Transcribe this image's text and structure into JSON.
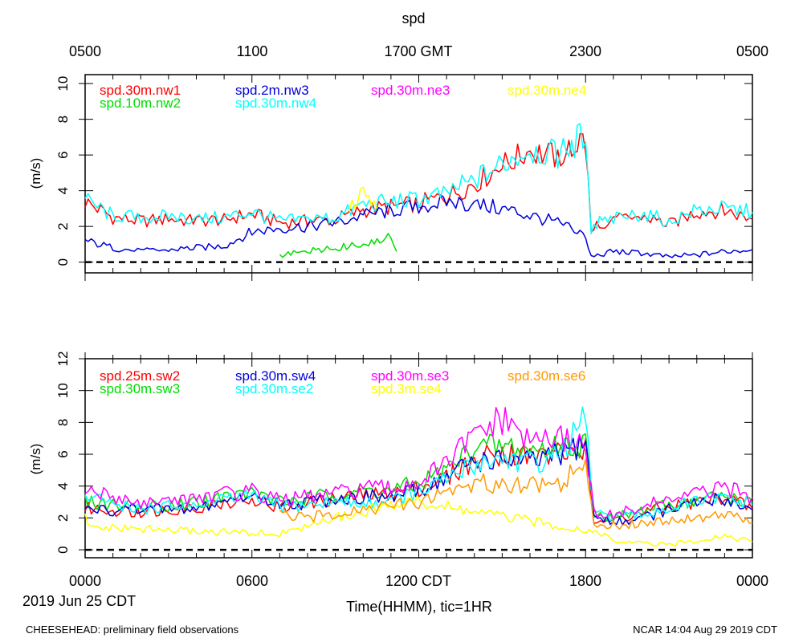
{
  "header": {
    "title": "spd",
    "top_ticks": [
      "0500",
      "1100",
      "1700 GMT",
      "2300",
      "0500"
    ]
  },
  "footer": {
    "date": "2019 Jun 25 CDT",
    "xlabel": "Time(HHMM), tic=1HR",
    "left_note": "CHEESEHEAD: preliminary field observations",
    "right_note": "NCAR 14:04 Aug 29 2019 CDT",
    "bottom_ticks": [
      "0000",
      "0600",
      "1200 CDT",
      "1800",
      "0000"
    ]
  },
  "chart_data": [
    {
      "type": "line",
      "title": "spd",
      "ylabel": "(m/s)",
      "xlabel": "Time(HHMM), tic=1HR",
      "x_unit": "hours CDT since 0000 Jun 25",
      "xlim": [
        0,
        24
      ],
      "ylim": [
        -0.6,
        10.5
      ],
      "yticks": [
        0,
        2,
        4,
        6,
        8,
        10
      ],
      "zero_line": true,
      "series": [
        {
          "name": "spd.30m.nw1",
          "color": "#ff0000",
          "x": [
            0,
            1,
            2,
            3,
            4,
            5,
            6,
            7,
            8,
            9,
            10,
            11,
            12,
            13,
            14,
            15,
            16,
            17,
            17.5,
            18,
            18.2,
            18.5,
            19,
            20,
            21,
            22,
            23,
            24
          ],
          "values": [
            3.4,
            2.5,
            2.3,
            2.4,
            2.3,
            2.4,
            2.7,
            2.2,
            2.3,
            2.4,
            2.9,
            3.1,
            3.3,
            3.7,
            4.4,
            5.4,
            6.2,
            5.9,
            6.4,
            7.0,
            1.6,
            2.2,
            2.3,
            2.6,
            2.1,
            2.8,
            2.9,
            2.4
          ]
        },
        {
          "name": "spd.10m.nw2",
          "color": "#00dd00",
          "x": [
            7,
            7.5,
            8,
            8.5,
            9,
            9.5,
            10,
            10.5,
            11,
            11.2
          ],
          "values": [
            0.4,
            0.5,
            0.6,
            0.7,
            0.8,
            0.9,
            1.0,
            1.2,
            1.5,
            0.6
          ]
        },
        {
          "name": "spd.2m.nw3",
          "color": "#0000dd",
          "x": [
            0,
            1,
            2,
            3,
            4,
            5,
            6,
            7,
            8,
            9,
            10,
            11,
            12,
            13,
            14,
            15,
            16,
            17,
            17.5,
            18,
            18.2,
            19,
            20,
            21,
            22,
            23,
            24
          ],
          "values": [
            1.2,
            0.8,
            0.6,
            0.7,
            0.8,
            0.9,
            1.7,
            1.9,
            2.0,
            2.2,
            2.6,
            2.9,
            3.1,
            3.4,
            3.2,
            3.0,
            2.6,
            2.2,
            1.8,
            1.5,
            0.3,
            0.6,
            0.5,
            0.3,
            0.4,
            0.6,
            0.7
          ]
        },
        {
          "name": "spd.30m.nw4",
          "color": "#00ffff",
          "x": [
            0,
            1,
            2,
            3,
            4,
            5,
            6,
            7,
            8,
            9,
            10,
            11,
            12,
            13,
            14,
            15,
            16,
            17,
            17.5,
            18,
            18.2,
            18.5,
            19,
            20,
            21,
            22,
            23,
            24
          ],
          "values": [
            3.5,
            2.6,
            2.5,
            2.6,
            2.4,
            2.5,
            2.8,
            2.3,
            2.4,
            2.5,
            3.2,
            3.4,
            3.5,
            3.9,
            4.6,
            5.5,
            6.3,
            6.0,
            6.6,
            7.2,
            1.7,
            2.3,
            2.4,
            2.7,
            2.3,
            2.9,
            3.0,
            2.8
          ]
        },
        {
          "name": "spd.30m.ne3",
          "color": "#ff00ff",
          "x": [],
          "values": []
        },
        {
          "name": "spd.30m.ne4",
          "color": "#ffff00",
          "x": [
            9.5,
            10,
            10.5
          ],
          "values": [
            3.0,
            3.8,
            3.0
          ]
        }
      ]
    },
    {
      "type": "line",
      "ylabel": "(m/s)",
      "xlabel": "Time(HHMM), tic=1HR",
      "x_unit": "hours CDT since 0000 Jun 25",
      "xlim": [
        0,
        24
      ],
      "ylim": [
        -0.5,
        12
      ],
      "yticks": [
        0,
        2,
        4,
        6,
        8,
        10,
        12
      ],
      "xtick_labels": [
        "0000",
        "0600",
        "1200 CDT",
        "1800",
        "0000"
      ],
      "zero_line": true,
      "series": [
        {
          "name": "spd.25m.sw2",
          "color": "#ff0000",
          "x": [
            0,
            2,
            4,
            6,
            7,
            8,
            9,
            10,
            11,
            12,
            13,
            14,
            15,
            16,
            17,
            18,
            18.3,
            19,
            20,
            21,
            22,
            23,
            24
          ],
          "values": [
            2.6,
            2.4,
            2.7,
            3.3,
            2.6,
            2.9,
            3.2,
            3.4,
            3.5,
            3.9,
            4.5,
            5.7,
            6.1,
            5.9,
            6.0,
            6.3,
            2.0,
            1.9,
            2.3,
            2.7,
            3.0,
            3.3,
            2.6
          ]
        },
        {
          "name": "spd.30m.sw3",
          "color": "#00dd00",
          "x": [
            0,
            2,
            4,
            6,
            7,
            8,
            9,
            10,
            11,
            12,
            13,
            14,
            15,
            16,
            17,
            18,
            18.3,
            19,
            20,
            21,
            22,
            23,
            24
          ],
          "values": [
            3.0,
            2.7,
            3.0,
            3.6,
            3.0,
            3.2,
            3.5,
            3.7,
            3.7,
            4.2,
            5.0,
            6.4,
            6.5,
            6.3,
            6.4,
            6.7,
            2.3,
            2.0,
            2.4,
            2.8,
            3.1,
            3.4,
            2.9
          ]
        },
        {
          "name": "spd.30m.sw4",
          "color": "#0000dd",
          "x": [
            0,
            2,
            4,
            6,
            7,
            8,
            9,
            10,
            11,
            12,
            13,
            14,
            15,
            16,
            17,
            18,
            18.3,
            19,
            20,
            21,
            22,
            23,
            24
          ],
          "values": [
            2.5,
            2.5,
            2.6,
            3.5,
            2.8,
            3.0,
            3.2,
            3.3,
            3.3,
            3.7,
            4.6,
            5.6,
            5.7,
            5.5,
            5.9,
            6.8,
            2.0,
            1.7,
            2.0,
            2.5,
            2.9,
            3.2,
            2.5
          ]
        },
        {
          "name": "spd.30m.se2",
          "color": "#00ffff",
          "x": [
            0,
            2,
            4,
            6,
            7,
            8,
            9,
            10,
            11,
            12,
            13,
            14,
            15,
            16,
            17,
            18,
            18.3,
            19,
            20,
            21,
            22,
            23,
            24
          ],
          "values": [
            3.3,
            2.6,
            2.8,
            3.4,
            2.7,
            2.8,
            3.0,
            2.9,
            3.1,
            3.6,
            4.4,
            5.4,
            5.8,
            5.5,
            5.8,
            8.2,
            2.2,
            2.0,
            2.2,
            2.6,
            3.0,
            3.3,
            2.8
          ]
        },
        {
          "name": "spd.30m.se3",
          "color": "#ff00ff",
          "x": [
            0,
            2,
            4,
            6,
            7,
            8,
            9,
            10,
            11,
            12,
            13,
            14,
            15,
            16,
            17,
            18,
            18.3,
            19,
            20,
            21,
            22,
            23,
            24
          ],
          "values": [
            3.7,
            3.0,
            3.3,
            3.7,
            3.1,
            3.3,
            3.5,
            3.9,
            3.8,
            4.3,
            5.3,
            7.3,
            8.1,
            7.0,
            7.0,
            6.8,
            2.4,
            2.1,
            2.7,
            3.1,
            3.5,
            3.9,
            3.3
          ]
        },
        {
          "name": "spd.3m.se4",
          "color": "#ffff00",
          "x": [
            0,
            0.2,
            7,
            8,
            9,
            10,
            11,
            11.5,
            18.8,
            19,
            20,
            21,
            22,
            23,
            24
          ],
          "values": [
            2.0,
            1.4,
            1.0,
            1.5,
            2.0,
            2.4,
            2.8,
            3.1,
            1.0,
            0.5,
            0.4,
            0.3,
            0.6,
            0.9,
            0.5
          ]
        },
        {
          "name": "spd.30m.se6",
          "color": "#ff9900",
          "x": [
            7,
            8,
            9,
            10,
            11,
            12,
            13,
            14,
            15,
            16,
            17,
            18,
            18.3,
            19,
            20,
            21,
            22,
            23,
            24
          ],
          "values": [
            2.2,
            2.0,
            2.3,
            2.6,
            2.7,
            3.0,
            3.7,
            4.2,
            4.1,
            4.2,
            4.1,
            5.4,
            1.7,
            1.5,
            1.7,
            1.9,
            2.0,
            2.3,
            1.7
          ]
        }
      ]
    }
  ]
}
